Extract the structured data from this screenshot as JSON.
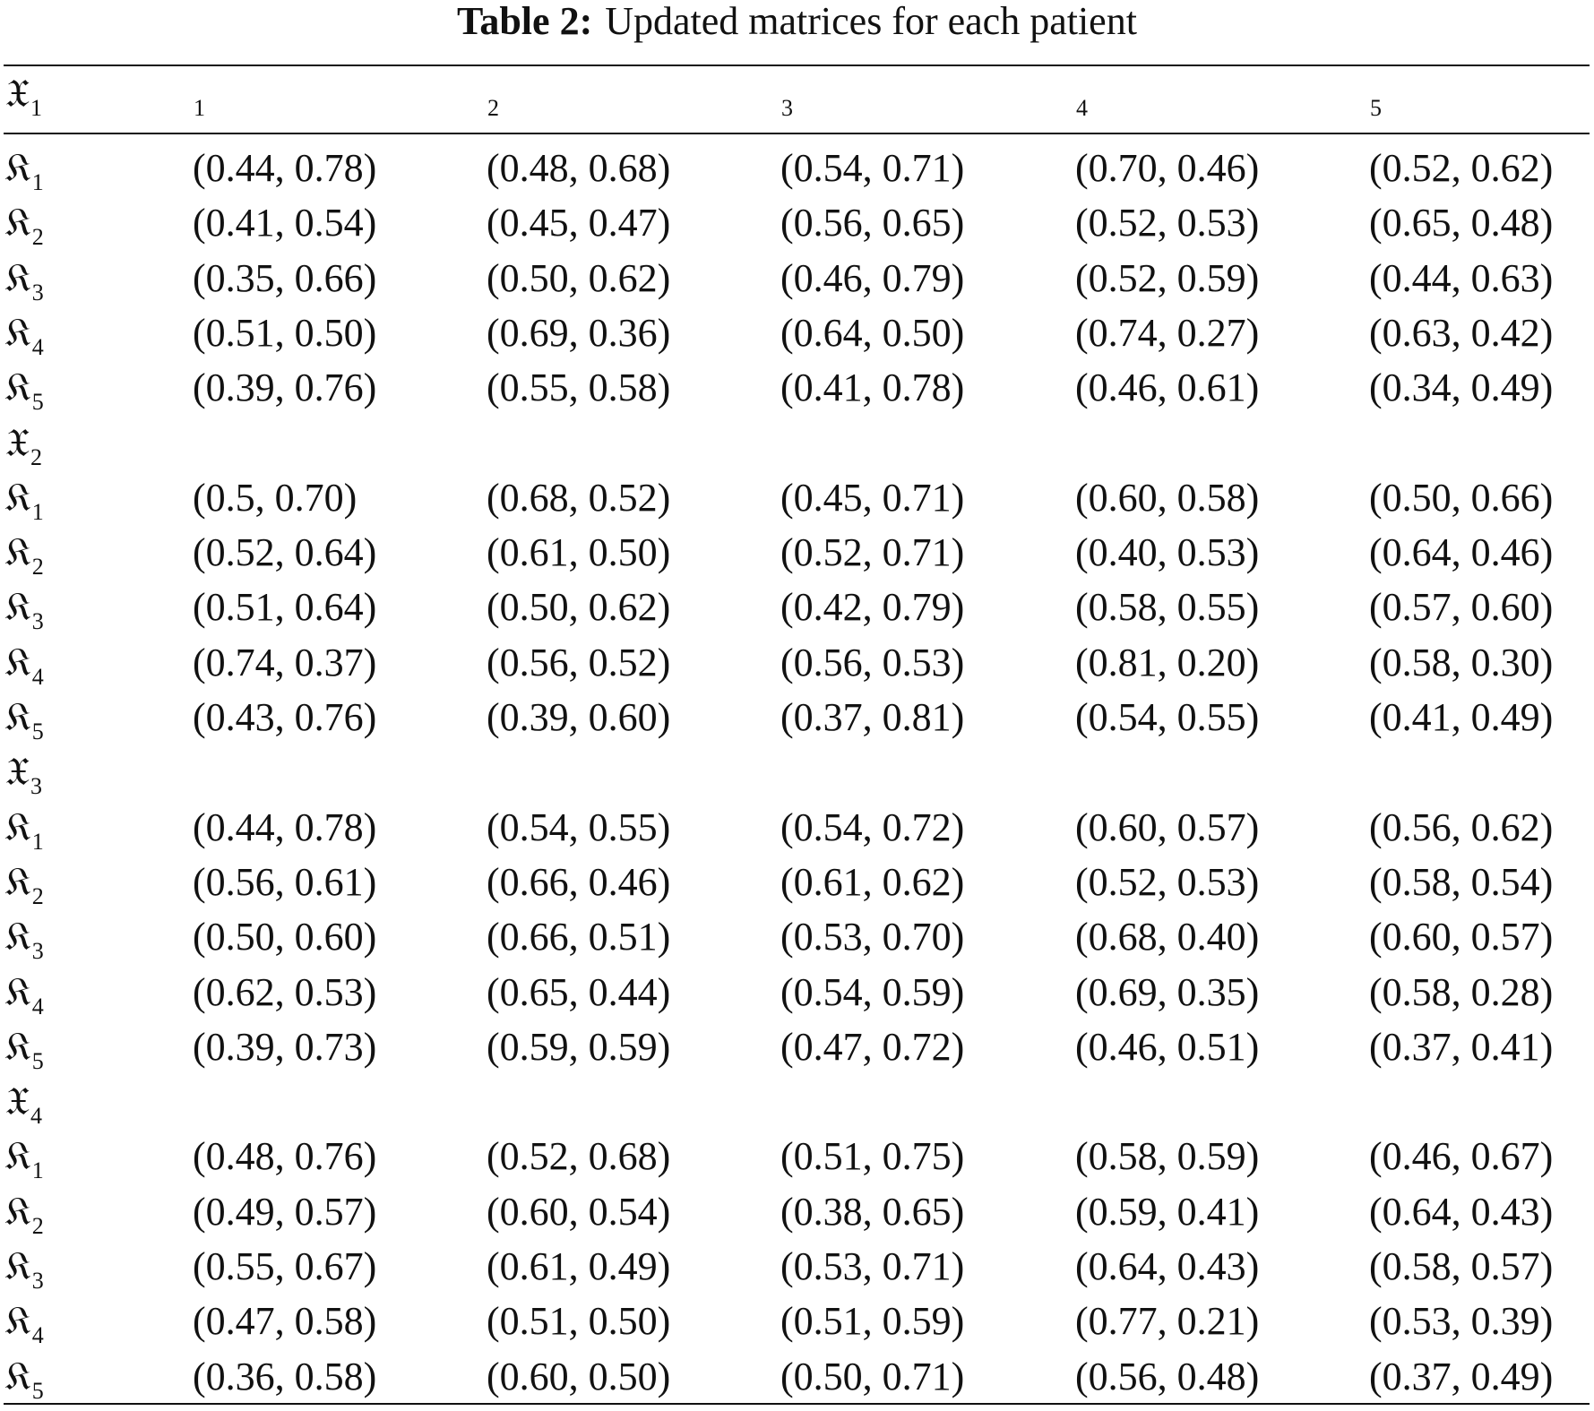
{
  "caption": {
    "label": "Table 2:",
    "text": "Updated matrices for each patient"
  },
  "header": {
    "row_label": {
      "sym": "𝔛",
      "sub": "1"
    },
    "columns": [
      {
        "sym": "𝔋",
        "sub": "1"
      },
      {
        "sym": "𝔋",
        "sub": "2"
      },
      {
        "sym": "𝔋",
        "sub": "3"
      },
      {
        "sym": "𝔋",
        "sub": "4"
      },
      {
        "sym": "𝔋",
        "sub": "5"
      }
    ]
  },
  "rows": [
    {
      "type": "data",
      "label": {
        "sym": "𝔎",
        "sub": "1"
      },
      "values": [
        "(0.44, 0.78)",
        "(0.48, 0.68)",
        "(0.54, 0.71)",
        "(0.70, 0.46)",
        "(0.52, 0.62)"
      ]
    },
    {
      "type": "data",
      "label": {
        "sym": "𝔎",
        "sub": "2"
      },
      "values": [
        "(0.41, 0.54)",
        "(0.45, 0.47)",
        "(0.56, 0.65)",
        "(0.52, 0.53)",
        "(0.65, 0.48)"
      ]
    },
    {
      "type": "data",
      "label": {
        "sym": "𝔎",
        "sub": "3"
      },
      "values": [
        "(0.35, 0.66)",
        "(0.50, 0.62)",
        "(0.46, 0.79)",
        "(0.52, 0.59)",
        "(0.44, 0.63)"
      ]
    },
    {
      "type": "data",
      "label": {
        "sym": "𝔎",
        "sub": "4"
      },
      "values": [
        "(0.51, 0.50)",
        "(0.69, 0.36)",
        "(0.64, 0.50)",
        "(0.74, 0.27)",
        "(0.63, 0.42)"
      ]
    },
    {
      "type": "data",
      "label": {
        "sym": "𝔎",
        "sub": "5"
      },
      "values": [
        "(0.39, 0.76)",
        "(0.55, 0.58)",
        "(0.41, 0.78)",
        "(0.46, 0.61)",
        "(0.34, 0.49)"
      ]
    },
    {
      "type": "group",
      "label": {
        "sym": "𝔛",
        "sub": "2"
      }
    },
    {
      "type": "data",
      "label": {
        "sym": "𝔎",
        "sub": "1"
      },
      "values": [
        "(0.5, 0.70)",
        "(0.68, 0.52)",
        "(0.45, 0.71)",
        "(0.60, 0.58)",
        "(0.50, 0.66)"
      ]
    },
    {
      "type": "data",
      "label": {
        "sym": "𝔎",
        "sub": "2"
      },
      "values": [
        "(0.52, 0.64)",
        "(0.61, 0.50)",
        "(0.52, 0.71)",
        "(0.40, 0.53)",
        "(0.64, 0.46)"
      ]
    },
    {
      "type": "data",
      "label": {
        "sym": "𝔎",
        "sub": "3"
      },
      "values": [
        "(0.51, 0.64)",
        "(0.50, 0.62)",
        "(0.42, 0.79)",
        "(0.58, 0.55)",
        "(0.57, 0.60)"
      ]
    },
    {
      "type": "data",
      "label": {
        "sym": "𝔎",
        "sub": "4"
      },
      "values": [
        "(0.74, 0.37)",
        "(0.56, 0.52)",
        "(0.56, 0.53)",
        "(0.81, 0.20)",
        "(0.58, 0.30)"
      ]
    },
    {
      "type": "data",
      "label": {
        "sym": "𝔎",
        "sub": "5"
      },
      "values": [
        "(0.43, 0.76)",
        "(0.39, 0.60)",
        "(0.37, 0.81)",
        "(0.54, 0.55)",
        "(0.41, 0.49)"
      ]
    },
    {
      "type": "group",
      "label": {
        "sym": "𝔛",
        "sub": "3"
      }
    },
    {
      "type": "data",
      "label": {
        "sym": "𝔎",
        "sub": "1"
      },
      "values": [
        "(0.44, 0.78)",
        "(0.54, 0.55)",
        "(0.54, 0.72)",
        "(0.60, 0.57)",
        "(0.56, 0.62)"
      ]
    },
    {
      "type": "data",
      "label": {
        "sym": "𝔎",
        "sub": "2"
      },
      "values": [
        "(0.56, 0.61)",
        "(0.66, 0.46)",
        "(0.61, 0.62)",
        "(0.52, 0.53)",
        "(0.58, 0.54)"
      ]
    },
    {
      "type": "data",
      "label": {
        "sym": "𝔎",
        "sub": "3"
      },
      "values": [
        "(0.50, 0.60)",
        "(0.66, 0.51)",
        "(0.53, 0.70)",
        "(0.68, 0.40)",
        "(0.60, 0.57)"
      ]
    },
    {
      "type": "data",
      "label": {
        "sym": "𝔎",
        "sub": "4"
      },
      "values": [
        "(0.62, 0.53)",
        "(0.65, 0.44)",
        "(0.54, 0.59)",
        "(0.69, 0.35)",
        "(0.58, 0.28)"
      ]
    },
    {
      "type": "data",
      "label": {
        "sym": "𝔎",
        "sub": "5"
      },
      "values": [
        "(0.39, 0.73)",
        "(0.59, 0.59)",
        "(0.47, 0.72)",
        "(0.46, 0.51)",
        "(0.37, 0.41)"
      ]
    },
    {
      "type": "group",
      "label": {
        "sym": "𝔛",
        "sub": "4"
      }
    },
    {
      "type": "data",
      "label": {
        "sym": "𝔎",
        "sub": "1"
      },
      "values": [
        "(0.48, 0.76)",
        "(0.52, 0.68)",
        "(0.51, 0.75)",
        "(0.58, 0.59)",
        "(0.46, 0.67)"
      ]
    },
    {
      "type": "data",
      "label": {
        "sym": "𝔎",
        "sub": "2"
      },
      "values": [
        "(0.49, 0.57)",
        "(0.60, 0.54)",
        "(0.38, 0.65)",
        "(0.59, 0.41)",
        "(0.64, 0.43)"
      ]
    },
    {
      "type": "data",
      "label": {
        "sym": "𝔎",
        "sub": "3"
      },
      "values": [
        "(0.55, 0.67)",
        "(0.61, 0.49)",
        "(0.53, 0.71)",
        "(0.64, 0.43)",
        "(0.58, 0.57)"
      ]
    },
    {
      "type": "data",
      "label": {
        "sym": "𝔎",
        "sub": "4"
      },
      "values": [
        "(0.47, 0.58)",
        "(0.51, 0.50)",
        "(0.51, 0.59)",
        "(0.77, 0.21)",
        "(0.53, 0.39)"
      ]
    },
    {
      "type": "data",
      "label": {
        "sym": "𝔎",
        "sub": "5"
      },
      "values": [
        "(0.36, 0.58)",
        "(0.60, 0.50)",
        "(0.50, 0.71)",
        "(0.56, 0.48)",
        "(0.37, 0.49)"
      ]
    }
  ]
}
